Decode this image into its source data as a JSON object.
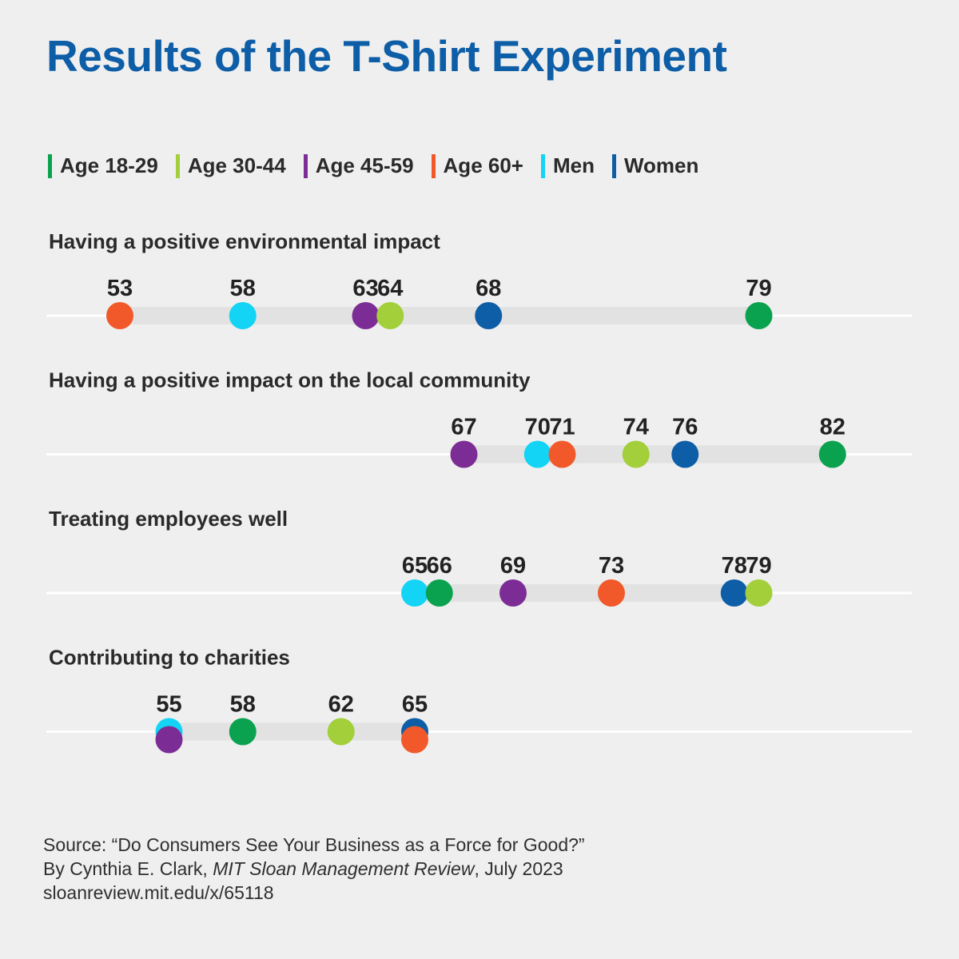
{
  "title": "Results of the T-Shirt Experiment",
  "legend": [
    {
      "label": "Age 18-29",
      "color": "#0aa24f"
    },
    {
      "label": "Age 30-44",
      "color": "#a3cf3a"
    },
    {
      "label": "Age 45-59",
      "color": "#7c2d95"
    },
    {
      "label": "Age 60+",
      "color": "#f1592a"
    },
    {
      "label": "Men",
      "color": "#13d4f5"
    },
    {
      "label": "Women",
      "color": "#0e5ea7"
    }
  ],
  "chart_data": {
    "type": "scatter",
    "title": "Results of the T-Shirt Experiment",
    "xlabel": "",
    "ylabel": "",
    "xlim": [
      50,
      85
    ],
    "grid": false,
    "legend_position": "top",
    "series_names": [
      "Age 18-29",
      "Age 30-44",
      "Age 45-59",
      "Age 60+",
      "Men",
      "Women"
    ],
    "rows": [
      {
        "label": "Having a positive environmental impact",
        "points": [
          {
            "series": "Age 60+",
            "value": 53
          },
          {
            "series": "Men",
            "value": 58
          },
          {
            "series": "Age 45-59",
            "value": 63
          },
          {
            "series": "Age 30-44",
            "value": 64
          },
          {
            "series": "Women",
            "value": 68
          },
          {
            "series": "Age 18-29",
            "value": 79
          }
        ]
      },
      {
        "label": "Having a positive impact on the local community",
        "points": [
          {
            "series": "Age 45-59",
            "value": 67
          },
          {
            "series": "Men",
            "value": 70
          },
          {
            "series": "Age 60+",
            "value": 71
          },
          {
            "series": "Age 30-44",
            "value": 74
          },
          {
            "series": "Women",
            "value": 76
          },
          {
            "series": "Age 18-29",
            "value": 82
          }
        ]
      },
      {
        "label": "Treating employees well",
        "points": [
          {
            "series": "Men",
            "value": 65
          },
          {
            "series": "Age 18-29",
            "value": 66
          },
          {
            "series": "Age 45-59",
            "value": 69
          },
          {
            "series": "Age 60+",
            "value": 73
          },
          {
            "series": "Women",
            "value": 78
          },
          {
            "series": "Age 30-44",
            "value": 79
          }
        ]
      },
      {
        "label": "Contributing to charities",
        "points": [
          {
            "series": "Men",
            "value": 55
          },
          {
            "series": "Age 45-59",
            "value": 55
          },
          {
            "series": "Age 18-29",
            "value": 58
          },
          {
            "series": "Age 30-44",
            "value": 62
          },
          {
            "series": "Women",
            "value": 65
          },
          {
            "series": "Age 60+",
            "value": 65
          }
        ]
      }
    ]
  },
  "source": {
    "line1": "Source: “Do Consumers See Your Business as a Force for Good?”",
    "line2_prefix": "By Cynthia E. Clark, ",
    "line2_publication": "MIT Sloan Management Review",
    "line2_suffix": ", July 2023",
    "line3": "sloanreview.mit.edu/x/65118"
  }
}
